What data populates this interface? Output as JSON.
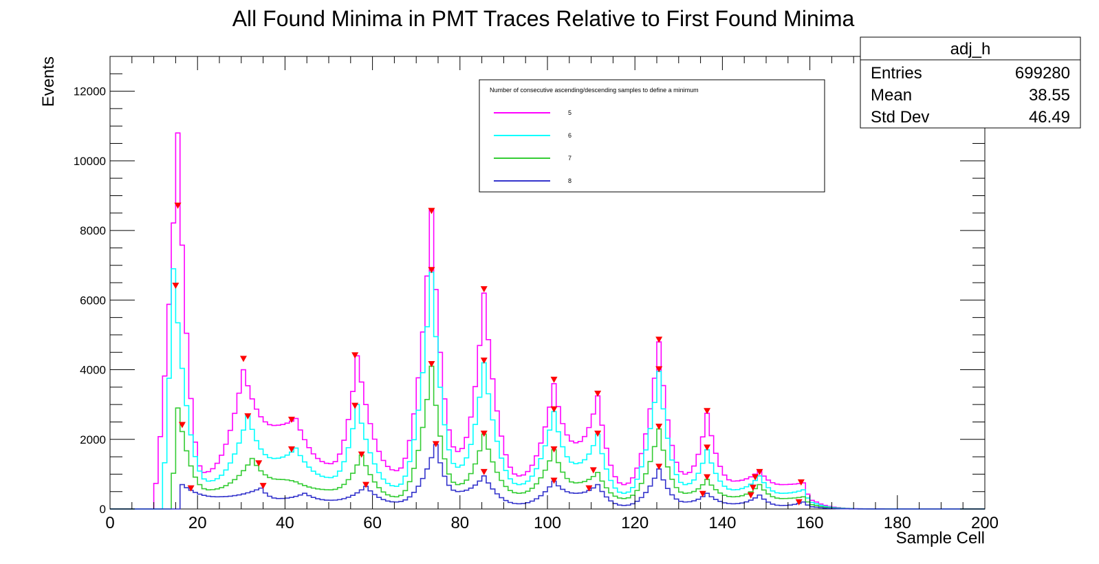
{
  "chart_data": {
    "type": "histogram",
    "title": "All Found Minima in PMT Traces Relative to First Found Minima",
    "xlabel": "Sample Cell",
    "ylabel": "Events",
    "xlim": [
      0,
      200
    ],
    "ylim": [
      0,
      13000
    ],
    "bin_width": 1,
    "x_ticks": [
      0,
      20,
      40,
      60,
      80,
      100,
      120,
      140,
      160,
      180,
      200
    ],
    "y_ticks": [
      0,
      2000,
      4000,
      6000,
      8000,
      10000,
      12000
    ],
    "grid": false,
    "legend": {
      "title": "Number of consecutive ascending/descending samples to define a minimum",
      "placement": "top-center-right"
    },
    "stats_box": {
      "name": "adj_h",
      "rows": [
        {
          "label": "Entries",
          "value": "699280"
        },
        {
          "label": "Mean",
          "value": "38.55"
        },
        {
          "label": "Std Dev",
          "value": "46.49"
        }
      ]
    },
    "profiles": [
      {
        "name": "5",
        "color": "#ff00ff",
        "start": 10,
        "peaks": [
          [
            15,
            10800
          ],
          [
            30,
            4000
          ],
          [
            42,
            2600
          ],
          [
            56,
            4400
          ],
          [
            73,
            8600
          ],
          [
            85,
            6200
          ],
          [
            101,
            3600
          ],
          [
            111,
            3250
          ],
          [
            125,
            4800
          ],
          [
            136,
            2750
          ],
          [
            148,
            1100
          ],
          [
            158,
            750
          ]
        ],
        "valleys": [
          [
            21,
            1050
          ],
          [
            37,
            2400
          ],
          [
            50,
            1300
          ],
          [
            65,
            1100
          ],
          [
            79,
            1650
          ],
          [
            93,
            950
          ],
          [
            106,
            1900
          ],
          [
            117,
            700
          ],
          [
            131,
            1000
          ],
          [
            142,
            800
          ],
          [
            153,
            700
          ],
          [
            161,
            200
          ]
        ]
      },
      {
        "name": "6",
        "color": "#00ffff",
        "start": 12,
        "peaks": [
          [
            14,
            6900
          ],
          [
            31,
            2700
          ],
          [
            42,
            1750
          ],
          [
            56,
            3000
          ],
          [
            73,
            6800
          ],
          [
            85,
            4200
          ],
          [
            101,
            2800
          ],
          [
            111,
            2150
          ],
          [
            125,
            3950
          ],
          [
            136,
            1700
          ],
          [
            148,
            950
          ],
          [
            158,
            550
          ]
        ],
        "valleys": [
          [
            22,
            800
          ],
          [
            37,
            1450
          ],
          [
            50,
            900
          ],
          [
            65,
            650
          ],
          [
            79,
            1200
          ],
          [
            93,
            700
          ],
          [
            106,
            1300
          ],
          [
            117,
            450
          ],
          [
            131,
            700
          ],
          [
            142,
            550
          ],
          [
            153,
            450
          ],
          [
            161,
            150
          ]
        ]
      },
      {
        "name": "7",
        "color": "#33cc33",
        "start": 14,
        "peaks": [
          [
            15,
            2900
          ],
          [
            32,
            1450
          ],
          [
            42,
            780
          ],
          [
            57,
            1550
          ],
          [
            73,
            4100
          ],
          [
            85,
            2150
          ],
          [
            101,
            1700
          ],
          [
            111,
            1050
          ],
          [
            125,
            2300
          ],
          [
            136,
            850
          ],
          [
            148,
            700
          ],
          [
            158,
            350
          ]
        ],
        "valleys": [
          [
            22,
            550
          ],
          [
            38,
            850
          ],
          [
            50,
            550
          ],
          [
            65,
            350
          ],
          [
            79,
            700
          ],
          [
            93,
            450
          ],
          [
            106,
            750
          ],
          [
            117,
            300
          ],
          [
            131,
            450
          ],
          [
            142,
            350
          ],
          [
            153,
            300
          ],
          [
            161,
            100
          ]
        ]
      },
      {
        "name": "8",
        "color": "#3333cc",
        "start": 16,
        "peaks": [
          [
            16,
            700
          ],
          [
            34,
            600
          ],
          [
            44,
            450
          ],
          [
            58,
            650
          ],
          [
            74,
            1850
          ],
          [
            85,
            950
          ],
          [
            101,
            800
          ],
          [
            111,
            700
          ],
          [
            125,
            1150
          ],
          [
            136,
            450
          ],
          [
            148,
            400
          ],
          [
            158,
            200
          ]
        ],
        "valleys": [
          [
            24,
            350
          ],
          [
            38,
            300
          ],
          [
            50,
            250
          ],
          [
            65,
            200
          ],
          [
            79,
            500
          ],
          [
            93,
            150
          ],
          [
            106,
            450
          ],
          [
            117,
            100
          ],
          [
            131,
            200
          ],
          [
            142,
            150
          ],
          [
            153,
            100
          ],
          [
            161,
            50
          ]
        ]
      }
    ],
    "markers": {
      "symbol": "inverted-triangle",
      "color": "#ff0000",
      "points": [
        [
          15.5,
          8700
        ],
        [
          15,
          6400
        ],
        [
          16.5,
          2400
        ],
        [
          18.5,
          580
        ],
        [
          30.5,
          4300
        ],
        [
          31.5,
          2650
        ],
        [
          34,
          1300
        ],
        [
          35,
          650
        ],
        [
          41.5,
          2550
        ],
        [
          41.5,
          1700
        ],
        [
          56,
          4400
        ],
        [
          56,
          2950
        ],
        [
          57.5,
          1550
        ],
        [
          58.5,
          680
        ],
        [
          73.5,
          8550
        ],
        [
          73.5,
          6850
        ],
        [
          73.5,
          4150
        ],
        [
          74.5,
          1850
        ],
        [
          85.5,
          6300
        ],
        [
          85.5,
          4250
        ],
        [
          85.5,
          2150
        ],
        [
          85.5,
          1050
        ],
        [
          101.5,
          3700
        ],
        [
          101.5,
          2850
        ],
        [
          101.5,
          1700
        ],
        [
          101.5,
          800
        ],
        [
          111.5,
          3300
        ],
        [
          111.5,
          2150
        ],
        [
          110.5,
          1100
        ],
        [
          109.5,
          580
        ],
        [
          125.5,
          4850
        ],
        [
          125.5,
          4000
        ],
        [
          125.5,
          2350
        ],
        [
          125.5,
          1200
        ],
        [
          136.5,
          2800
        ],
        [
          136.5,
          1750
        ],
        [
          136.5,
          900
        ],
        [
          135.5,
          420
        ],
        [
          148.5,
          1050
        ],
        [
          147.5,
          900
        ],
        [
          147,
          600
        ],
        [
          146.5,
          380
        ],
        [
          158,
          750
        ],
        [
          157.5,
          180
        ]
      ]
    }
  }
}
